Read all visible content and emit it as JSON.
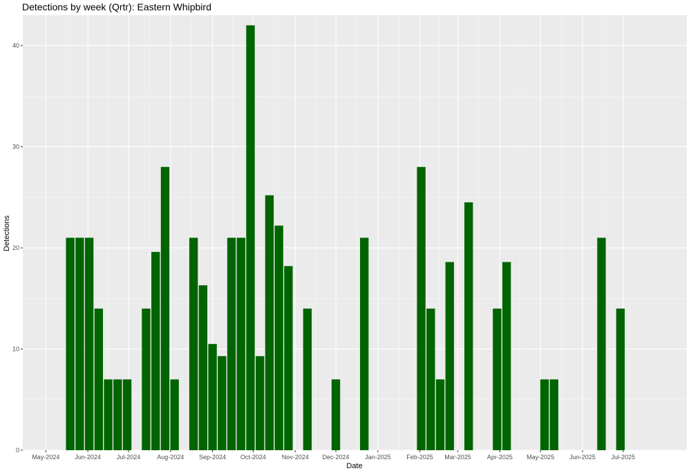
{
  "chart_data": {
    "type": "bar",
    "title": "Detections by week (Qrtr): Eastern Whipbird",
    "xlabel": "Date",
    "ylabel": "Detections",
    "xlim": [
      "2024-04-14",
      "2025-08-17"
    ],
    "ylim": [
      0,
      43
    ],
    "yticks": [
      0,
      10,
      20,
      30,
      40
    ],
    "xticks": [
      {
        "date": "2024-05-01",
        "label": "May-2024"
      },
      {
        "date": "2024-06-01",
        "label": "Jun-2024"
      },
      {
        "date": "2024-07-01",
        "label": "Jul-2024"
      },
      {
        "date": "2024-08-01",
        "label": "Aug-2024"
      },
      {
        "date": "2024-09-01",
        "label": "Sep-2024"
      },
      {
        "date": "2024-10-01",
        "label": "Oct-2024"
      },
      {
        "date": "2024-11-01",
        "label": "Nov-2024"
      },
      {
        "date": "2024-12-01",
        "label": "Dec-2024"
      },
      {
        "date": "2025-01-01",
        "label": "Jan-2025"
      },
      {
        "date": "2025-02-01",
        "label": "Feb-2025"
      },
      {
        "date": "2025-03-01",
        "label": "Mar-2025"
      },
      {
        "date": "2025-04-01",
        "label": "Apr-2025"
      },
      {
        "date": "2025-05-01",
        "label": "May-2025"
      },
      {
        "date": "2025-06-01",
        "label": "Jun-2025"
      },
      {
        "date": "2025-07-01",
        "label": "Jul-2025"
      }
    ],
    "grid": true,
    "bar_color": "#006400",
    "panel_background": "#ebebeb",
    "x": [
      "2024-05-19",
      "2024-05-26",
      "2024-06-02",
      "2024-06-09",
      "2024-06-16",
      "2024-06-23",
      "2024-06-30",
      "2024-07-14",
      "2024-07-21",
      "2024-07-28",
      "2024-08-04",
      "2024-08-18",
      "2024-08-25",
      "2024-09-01",
      "2024-09-08",
      "2024-09-15",
      "2024-09-22",
      "2024-09-29",
      "2024-10-06",
      "2024-10-13",
      "2024-10-20",
      "2024-10-27",
      "2024-11-10",
      "2024-12-01",
      "2024-12-22",
      "2025-02-02",
      "2025-02-09",
      "2025-02-16",
      "2025-02-23",
      "2025-03-09",
      "2025-03-30",
      "2025-04-06",
      "2025-05-04",
      "2025-05-11",
      "2025-06-15",
      "2025-06-29"
    ],
    "values": [
      21,
      21,
      21,
      14,
      7,
      7,
      7,
      14,
      19.6,
      28,
      7,
      21,
      16.3,
      10.5,
      9.3,
      21,
      21,
      42,
      9.3,
      25.2,
      22.2,
      18.2,
      14,
      7,
      21,
      28,
      14,
      7,
      18.6,
      24.5,
      14,
      18.6,
      7,
      7,
      21,
      14
    ]
  }
}
